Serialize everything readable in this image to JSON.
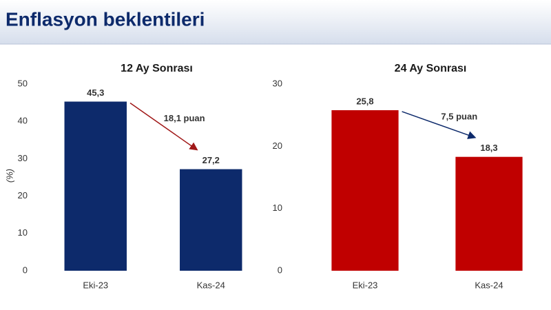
{
  "title": "Enflasyon beklentileri",
  "chart_data": [
    {
      "type": "bar",
      "title": "12 Ay Sonrası",
      "ylabel": "(%)",
      "categories": [
        "Eki-23",
        "Kas-24"
      ],
      "values": [
        45.3,
        27.2
      ],
      "value_labels": [
        "45,3",
        "27,2"
      ],
      "color": "#0d2a6b",
      "label_color": "#1a1a1a",
      "ylim": [
        0,
        50
      ],
      "yticks": [
        0,
        10,
        20,
        30,
        40,
        50
      ],
      "annotation": "18,1 puan",
      "annotation_color": "#a01818"
    },
    {
      "type": "bar",
      "title": "24 Ay Sonrası",
      "categories": [
        "Eki-23",
        "Kas-24"
      ],
      "values": [
        25.8,
        18.3
      ],
      "value_labels": [
        "25,8",
        "18,3"
      ],
      "color": "#c00000",
      "label_color": "#a01818",
      "ylim": [
        0,
        30
      ],
      "yticks": [
        0,
        10,
        20,
        30
      ],
      "annotation": "7,5 puan",
      "annotation_color": "#0d2a6b"
    }
  ]
}
